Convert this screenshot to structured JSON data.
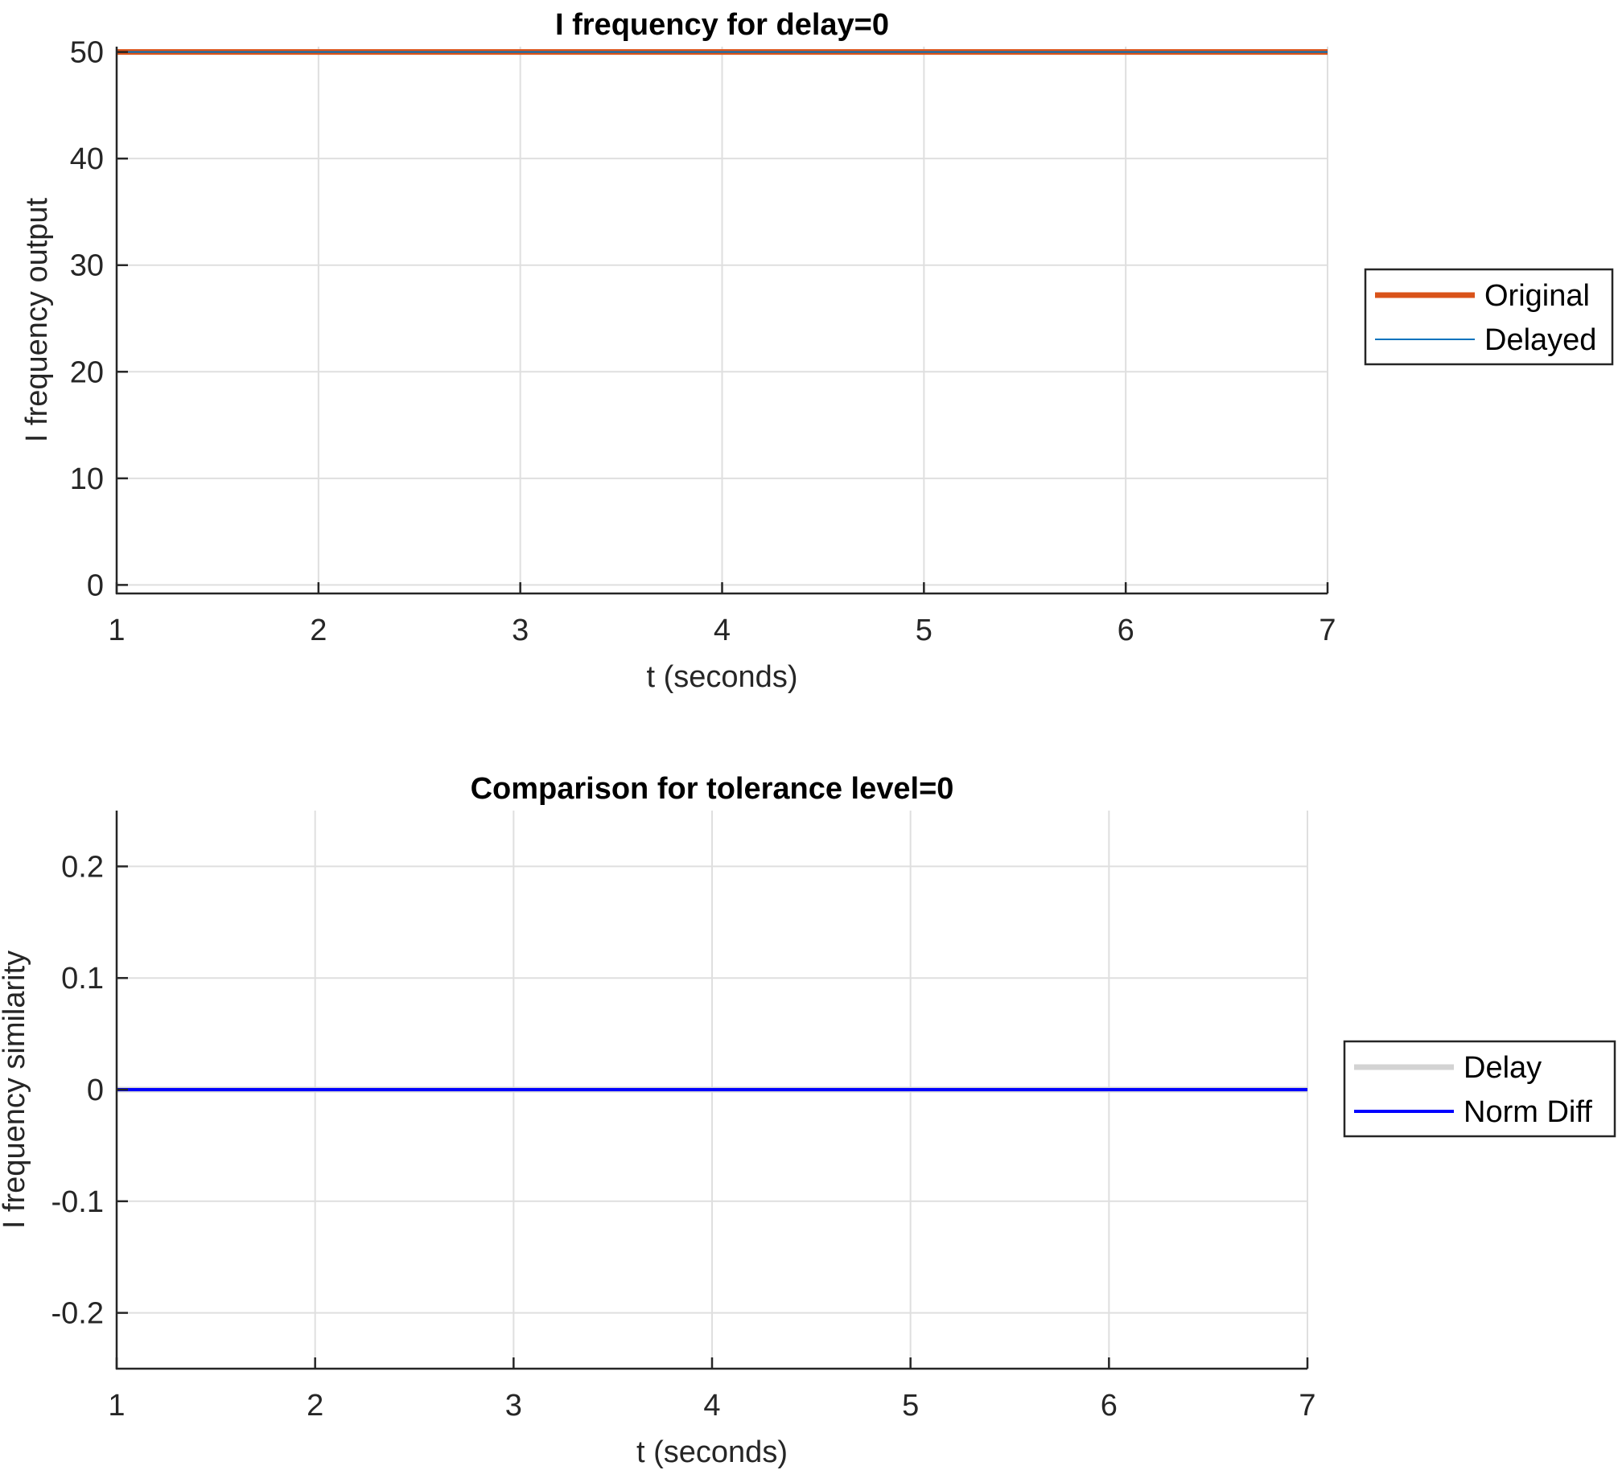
{
  "chart_data": [
    {
      "type": "line",
      "title": "I frequency for delay=0",
      "xlabel": "t (seconds)",
      "ylabel": "I frequency output",
      "xlim": [
        1,
        7
      ],
      "ylim": [
        -0.8,
        50.5
      ],
      "xticks": [
        1,
        2,
        3,
        4,
        5,
        6,
        7
      ],
      "yticks": [
        0,
        10,
        20,
        30,
        40,
        50
      ],
      "xtick_labels": [
        "1",
        "2",
        "3",
        "4",
        "5",
        "6",
        "7"
      ],
      "ytick_labels": [
        "0",
        "10",
        "20",
        "30",
        "40",
        "50"
      ],
      "grid": true,
      "legend_position": "outside-right",
      "series": [
        {
          "name": "Original",
          "color": "#D95319",
          "style": "thick",
          "x": [
            1,
            7
          ],
          "y": [
            50,
            50
          ]
        },
        {
          "name": "Delayed",
          "color": "#0072BD",
          "style": "thin",
          "x": [
            1,
            7
          ],
          "y": [
            50,
            50
          ]
        }
      ]
    },
    {
      "type": "line",
      "title": "Comparison for tolerance level=0",
      "xlabel": "t (seconds)",
      "ylabel": "I frequency similarity",
      "xlim": [
        1,
        7
      ],
      "ylim": [
        -0.25,
        0.25
      ],
      "xticks": [
        1,
        2,
        3,
        4,
        5,
        6,
        7
      ],
      "yticks": [
        0.2,
        0.1,
        0,
        -0.1,
        -0.2
      ],
      "xtick_labels": [
        "1",
        "2",
        "3",
        "4",
        "5",
        "6",
        "7"
      ],
      "ytick_labels": [
        "0.2",
        "0.1",
        "0",
        "-0.1",
        "-0.2"
      ],
      "grid": true,
      "legend_position": "outside-right",
      "series": [
        {
          "name": "Delay",
          "color": "#D3D3D3",
          "style": "thick",
          "x": [
            1,
            7
          ],
          "y": [
            0,
            0
          ]
        },
        {
          "name": "Norm Diff",
          "color": "#0000FF",
          "style": "medium",
          "x": [
            1,
            7
          ],
          "y": [
            0,
            0
          ]
        }
      ]
    }
  ]
}
